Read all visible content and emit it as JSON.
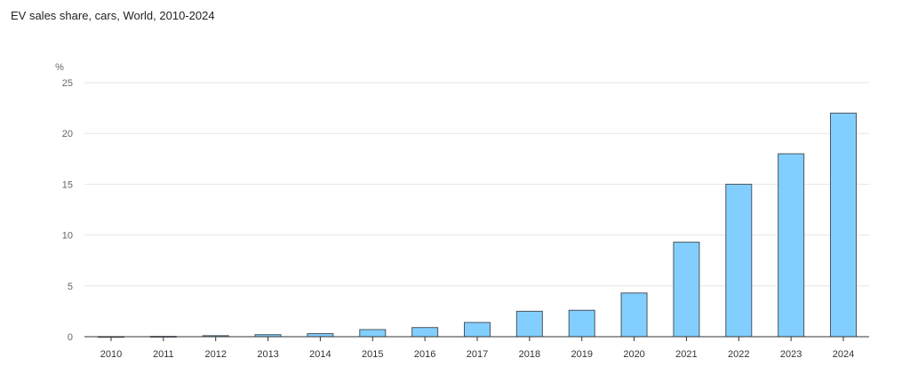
{
  "chart_data": {
    "type": "bar",
    "title": "EV sales share, cars, World, 2010-2024",
    "ylabel": "%",
    "xlabel": "",
    "ylim": [
      0,
      25
    ],
    "yticks": [
      0,
      5,
      10,
      15,
      20,
      25
    ],
    "grid": true,
    "legend": "none",
    "bar_color": "#82cfff",
    "bar_stroke": "#4a5560",
    "categories": [
      "2010",
      "2011",
      "2012",
      "2013",
      "2014",
      "2015",
      "2016",
      "2017",
      "2018",
      "2019",
      "2020",
      "2021",
      "2022",
      "2023",
      "2024"
    ],
    "values": [
      0.01,
      0.03,
      0.1,
      0.2,
      0.3,
      0.7,
      0.9,
      1.4,
      2.5,
      2.6,
      4.3,
      9.3,
      15.0,
      18.0,
      22.0
    ]
  }
}
